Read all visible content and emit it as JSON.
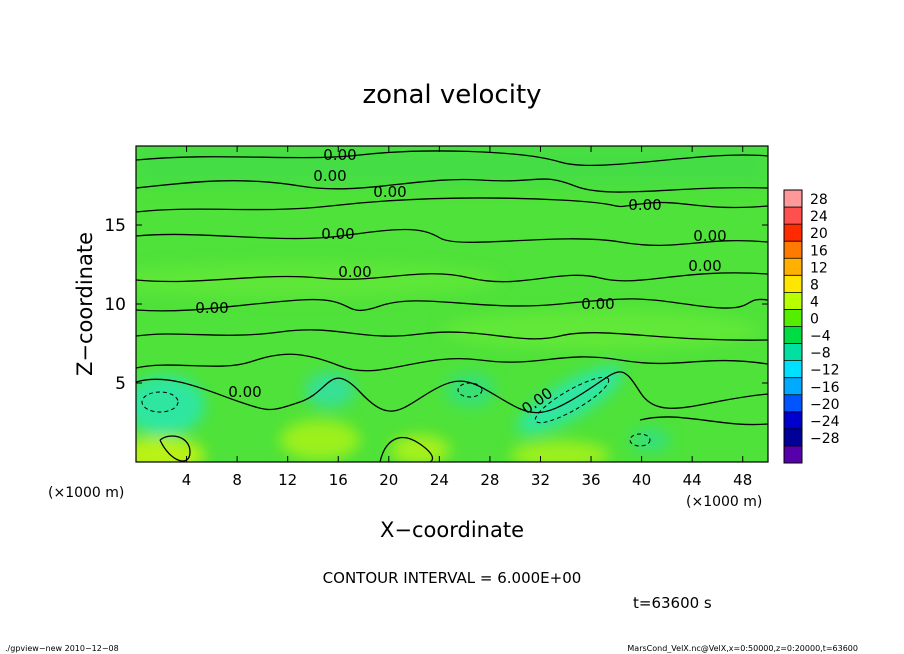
{
  "chart_data": {
    "type": "heatmap",
    "title": "zonal velocity",
    "xlabel": "X−coordinate",
    "ylabel": "Z−coordinate",
    "x_unit": "(×1000 m)",
    "y_unit": "(×1000 m)",
    "xlim": [
      0,
      50
    ],
    "ylim": [
      0,
      20
    ],
    "x_ticks": [
      "4",
      "8",
      "12",
      "16",
      "20",
      "24",
      "28",
      "32",
      "36",
      "40",
      "44",
      "48"
    ],
    "y_ticks": [
      "5",
      "10",
      "15"
    ],
    "colorbar": {
      "labels": [
        "28",
        "24",
        "20",
        "16",
        "12",
        "8",
        "4",
        "0",
        "−4",
        "−8",
        "−12",
        "−16",
        "−20",
        "−24",
        "−28"
      ],
      "colors": [
        "#ff9999",
        "#ff5050",
        "#ff2a00",
        "#ff7a00",
        "#ffb000",
        "#ffe600",
        "#b8ff00",
        "#55ee00",
        "#00dd44",
        "#00e0a0",
        "#00e0ff",
        "#00aaff",
        "#0055ff",
        "#0000cc",
        "#000099",
        "#5500aa"
      ]
    },
    "contour_interval": "CONTOUR INTERVAL = 6.000E+00",
    "contour_labels": [
      "0.00",
      "0.00",
      "0.00",
      "0.00",
      "0.00",
      "0.00",
      "0.00",
      "0.00",
      "0.00",
      "0.00",
      "0.00",
      "0.00",
      "0.00"
    ],
    "time_label": "t=63600 s",
    "footer_left": "./gpview−new   2010−12−08",
    "footer_right": "MarsCond_VelX.nc@VelX,x=0:50000,z=0:20000,t=63600"
  }
}
